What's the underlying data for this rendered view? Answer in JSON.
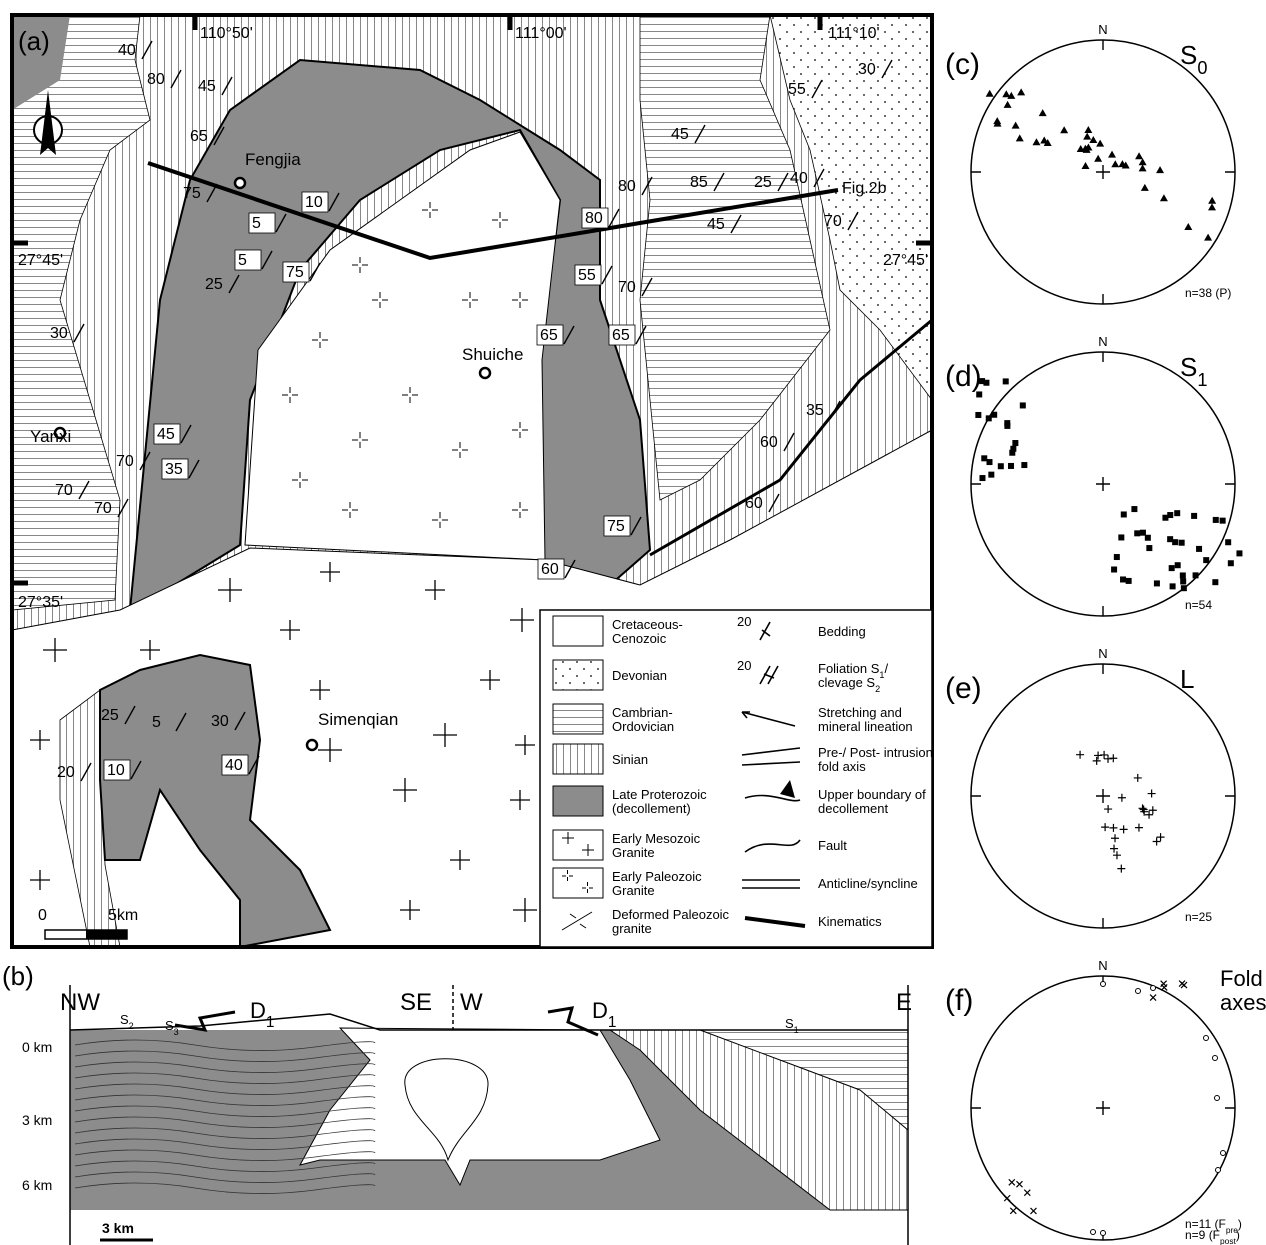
{
  "map": {
    "panel_label": "(a)",
    "longitudes": [
      "110°50'",
      "111°00'",
      "111°10'"
    ],
    "latitudes": [
      "27°45'",
      "27°35'",
      "27°45'"
    ],
    "places": [
      "Fengjia",
      "Shuiche",
      "Yanxi",
      "Simenqian"
    ],
    "section_line_label": "Fig.2b",
    "attitudes": [
      40,
      80,
      45,
      65,
      75,
      10,
      5,
      5,
      75,
      25,
      30,
      45,
      35,
      70,
      70,
      70,
      80,
      85,
      80,
      25,
      40,
      45,
      70,
      55,
      30,
      45,
      55,
      70,
      65,
      65,
      60,
      35,
      60,
      75,
      60,
      25,
      5,
      30,
      10,
      40,
      20
    ],
    "scale": [
      "0",
      "5km"
    ]
  },
  "legend": {
    "items": [
      {
        "lines": [
          [
            "Cretaceous-"
          ],
          [
            "Cenozoic"
          ]
        ]
      },
      {
        "lines": [
          [
            "Devonian"
          ]
        ]
      },
      {
        "lines": [
          [
            "Cambrian-"
          ],
          [
            "Ordovician"
          ]
        ]
      },
      {
        "lines": [
          [
            "Sinian"
          ]
        ]
      },
      {
        "lines": [
          [
            "Late Proterozoic"
          ],
          [
            "(decollement)"
          ]
        ]
      },
      {
        "lines": [
          [
            "Early Mesozoic"
          ],
          [
            "Granite"
          ]
        ]
      },
      {
        "lines": [
          [
            "Early Paleozoic"
          ],
          [
            "Granite"
          ]
        ]
      },
      {
        "lines": [
          [
            "Deformed Paleozoic"
          ],
          [
            "granite"
          ]
        ]
      },
      {
        "lines": [
          [
            "Bedding"
          ]
        ],
        "value": 20
      },
      {
        "lines": [
          [
            "Foliation S",
            "1",
            "/"
          ],
          [
            "clevage S",
            "2"
          ]
        ],
        "value": 20
      },
      {
        "lines": [
          [
            "Stretching and"
          ],
          [
            "mineral lineation"
          ]
        ]
      },
      {
        "lines": [
          [
            "Pre-/ Post- intrusion"
          ],
          [
            "fold axis"
          ]
        ]
      },
      {
        "lines": [
          [
            "Upper boundary of"
          ],
          [
            "decollement"
          ]
        ]
      },
      {
        "lines": [
          [
            "Fault"
          ]
        ]
      },
      {
        "lines": [
          [
            "Anticline/syncline"
          ]
        ]
      },
      {
        "lines": [
          [
            "Kinematics"
          ]
        ]
      }
    ]
  },
  "section": {
    "panel_label": "(b)",
    "ends": [
      "NW",
      "SE",
      "W",
      "E"
    ],
    "depths": [
      "0 km",
      "3 km",
      "6 km"
    ],
    "scale": "3 km",
    "deformations": [
      [
        [
          "D",
          "1"
        ]
      ],
      [
        [
          "D",
          "1"
        ]
      ]
    ],
    "fabrics": [
      [
        [
          "S",
          "2"
        ]
      ],
      [
        [
          "S",
          "3"
        ]
      ],
      [
        [
          "S",
          "1"
        ]
      ]
    ]
  },
  "stereonets": [
    {
      "panel_label": "(c)",
      "north": "N",
      "title": [
        [
          "S",
          "0"
        ]
      ],
      "count": [
        [
          "n=38 (P)"
        ]
      ]
    },
    {
      "panel_label": "(d)",
      "north": "N",
      "title": [
        [
          "S",
          "1"
        ]
      ],
      "count": [
        [
          "n=54"
        ]
      ]
    },
    {
      "panel_label": "(e)",
      "north": "N",
      "title": [
        [
          "L"
        ]
      ],
      "count": [
        [
          "n=25"
        ]
      ]
    },
    {
      "panel_label": "(f)",
      "north": "N",
      "title": [
        [
          "Fold"
        ],
        [
          "axes"
        ]
      ],
      "count": [
        [
          "n=11 (F",
          "pre",
          ")"
        ],
        [
          "n=9 (F",
          "post",
          ")"
        ]
      ]
    }
  ]
}
